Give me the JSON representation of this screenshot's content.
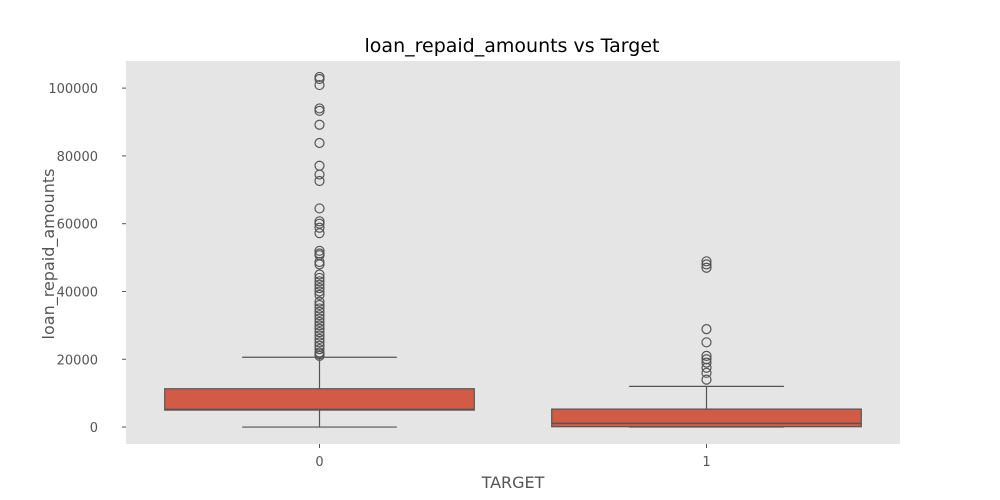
{
  "chart_data": {
    "type": "box",
    "title": "loan_repaid_amounts vs Target",
    "xlabel": "TARGET",
    "ylabel": "loan_repaid_amounts",
    "ylim": [
      -5000,
      108000
    ],
    "yticks": [
      0,
      20000,
      40000,
      60000,
      80000,
      100000
    ],
    "grid": false,
    "categories": [
      "0",
      "1"
    ],
    "boxes": [
      {
        "category": "0",
        "whisker_low": 0,
        "q1": 5000,
        "median": 5200,
        "q3": 11300,
        "whisker_high": 20600,
        "outliers": [
          103300,
          102700,
          100900,
          94000,
          93300,
          89200,
          83800,
          77100,
          74500,
          72600,
          64500,
          60700,
          60000,
          58800,
          57200,
          52000,
          51200,
          50700,
          48700,
          48000,
          45000,
          44000,
          43000,
          42000,
          41000,
          40000,
          39000,
          37000,
          36000,
          35000,
          34000,
          33000,
          32000,
          31000,
          30000,
          29000,
          28000,
          27000,
          26000,
          25000,
          24000,
          23000,
          22000,
          21500,
          21000
        ]
      },
      {
        "category": "1",
        "whisker_low": 0,
        "q1": 100,
        "median": 1100,
        "q3": 5300,
        "whisker_high": 12000,
        "outliers": [
          48900,
          48000,
          47000,
          28900,
          25000,
          21000,
          20000,
          19000,
          17500,
          16000,
          14000
        ]
      }
    ],
    "colors": {
      "box_fill": "#d15b45",
      "box_edge": "#555555",
      "plot_background": "#e5e5e5"
    }
  }
}
